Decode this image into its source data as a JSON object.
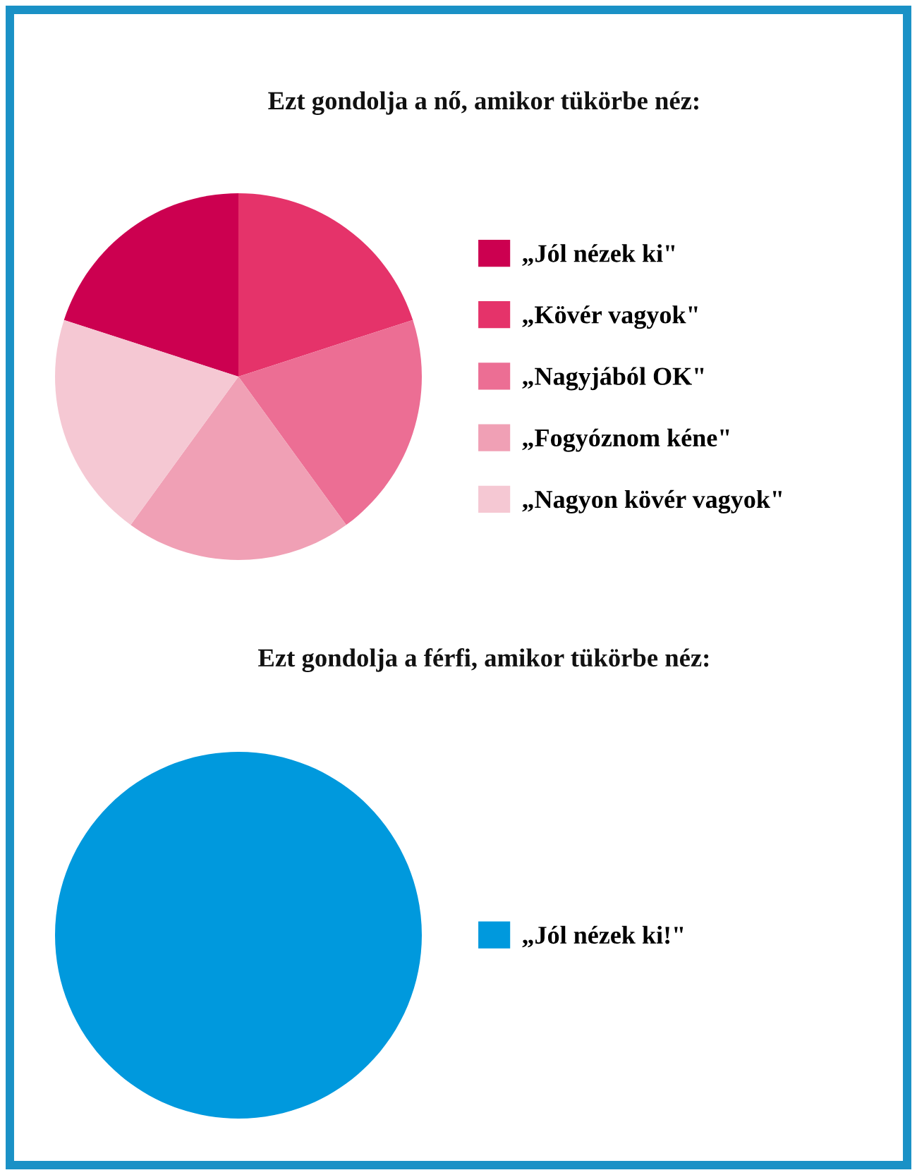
{
  "chart_data": [
    {
      "type": "pie",
      "title": "Ezt gondolja a nő, amikor tükörbe néz:",
      "categories": [
        "„Jól nézek ki\"",
        "„Kövér vagyok\"",
        "„Nagyjából OK\"",
        "„Fogyóznom kéne\"",
        "„Nagyon kövér vagyok\""
      ],
      "values": [
        20,
        20,
        20,
        20,
        20
      ],
      "colors": [
        "#cc0050",
        "#e5336a",
        "#ec6e94",
        "#f0a0b5",
        "#f5c8d3"
      ],
      "legend": "right"
    },
    {
      "type": "pie",
      "title": "Ezt gondolja a férfi, amikor tükörbe néz:",
      "categories": [
        "„Jól nézek ki!\""
      ],
      "values": [
        100
      ],
      "colors": [
        "#0099dd"
      ],
      "legend": "right"
    }
  ]
}
